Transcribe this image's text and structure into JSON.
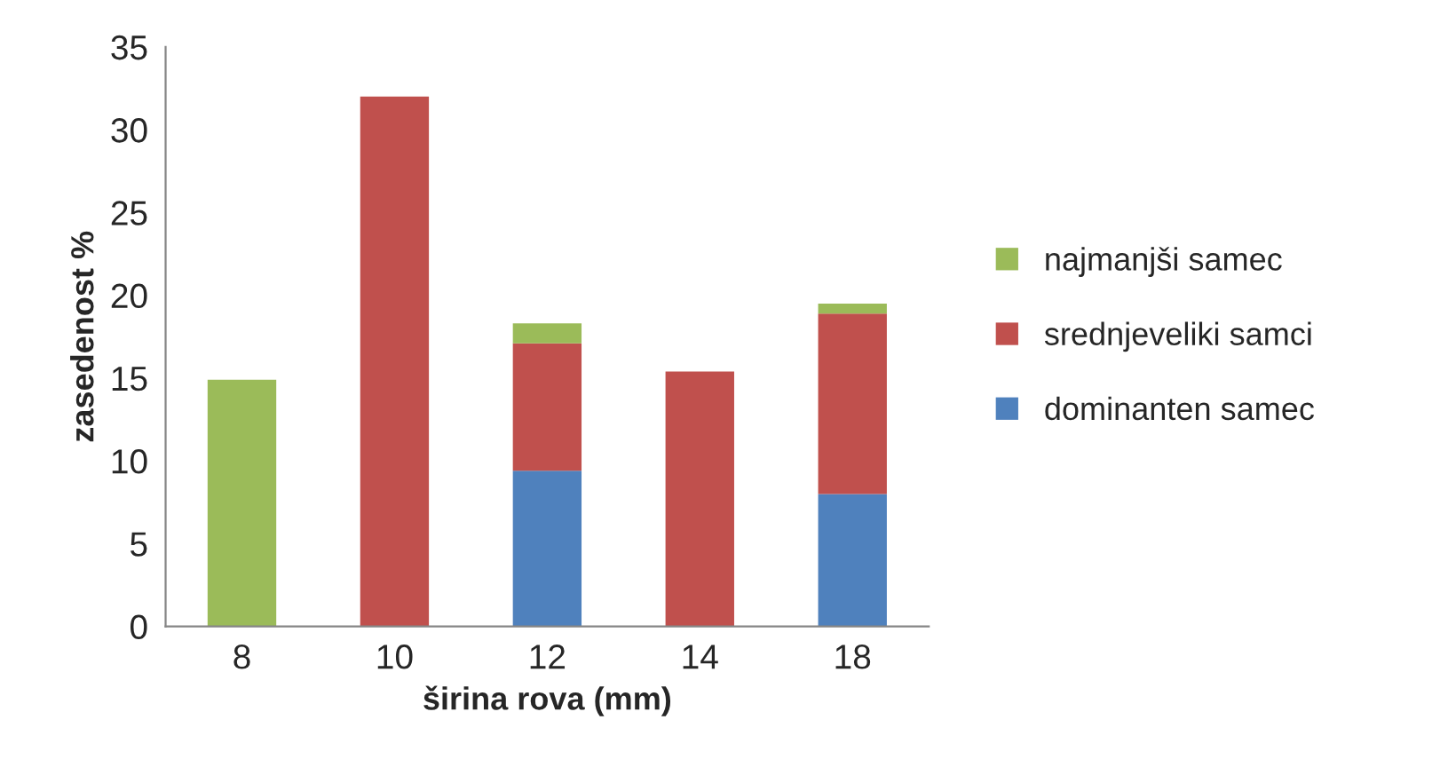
{
  "chart_data": {
    "type": "bar",
    "stacked": true,
    "xlabel": "širina rova (mm)",
    "ylabel": "zasedenost %",
    "categories": [
      "8",
      "10",
      "12",
      "14",
      "18"
    ],
    "series": [
      {
        "name": "dominanten samec",
        "color": "#4f81bd",
        "values": [
          null,
          null,
          9.4,
          null,
          8.0
        ]
      },
      {
        "name": "srednjeveliki samci",
        "color": "#c0504d",
        "values": [
          null,
          32.0,
          7.7,
          15.4,
          10.9
        ]
      },
      {
        "name": "najmanjši samec",
        "color": "#9bbb59",
        "values": [
          14.9,
          null,
          1.2,
          null,
          0.6
        ]
      }
    ],
    "ylim": [
      0,
      35
    ],
    "yticks": [
      0,
      5,
      10,
      15,
      20,
      25,
      30,
      35
    ],
    "grid": false,
    "legend": "right"
  }
}
